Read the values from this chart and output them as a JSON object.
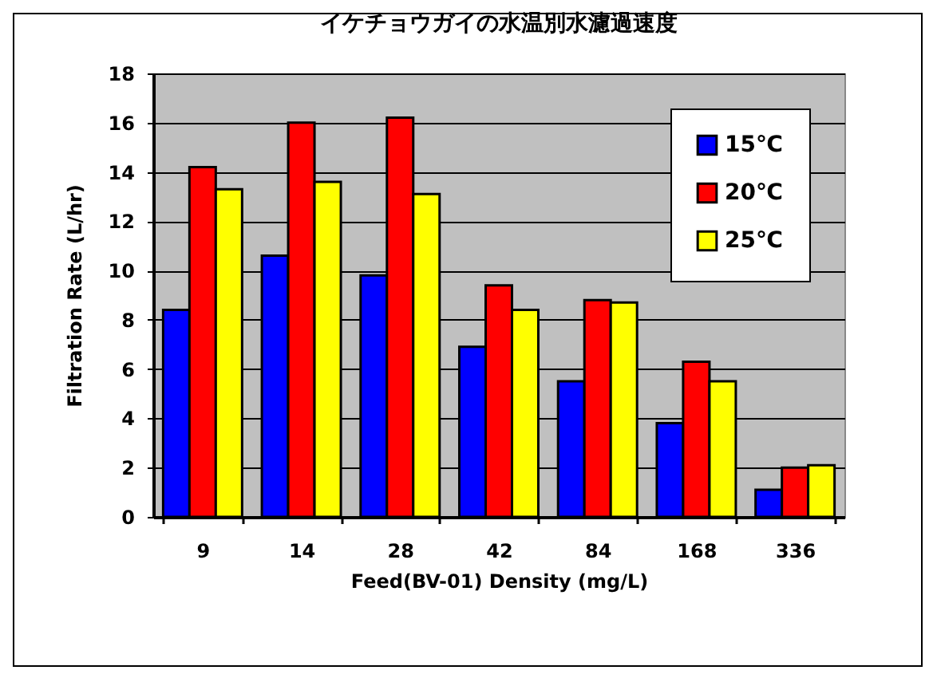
{
  "chart_data": {
    "type": "bar",
    "title": "イケチョウガイの水温別水濾過速度",
    "xlabel": "Feed(BV-01) Density (mg/L)",
    "ylabel": "Filtration Rate (L/hr)",
    "categories": [
      "9",
      "14",
      "28",
      "42",
      "84",
      "168",
      "336"
    ],
    "series": [
      {
        "name": "15℃",
        "color": "#0000ff",
        "values": [
          8.4,
          10.6,
          9.8,
          6.9,
          5.5,
          3.8,
          1.1
        ]
      },
      {
        "name": "20℃",
        "color": "#ff0000",
        "values": [
          14.2,
          16.0,
          16.2,
          9.4,
          8.8,
          6.3,
          2.0
        ]
      },
      {
        "name": "25℃",
        "color": "#ffff00",
        "values": [
          13.3,
          13.6,
          13.1,
          8.4,
          8.7,
          5.5,
          2.1
        ]
      }
    ],
    "ylim": [
      0,
      18
    ],
    "yticks": [
      0,
      2,
      4,
      6,
      8,
      10,
      12,
      14,
      16,
      18
    ],
    "grid": "y",
    "legend": "top right"
  }
}
